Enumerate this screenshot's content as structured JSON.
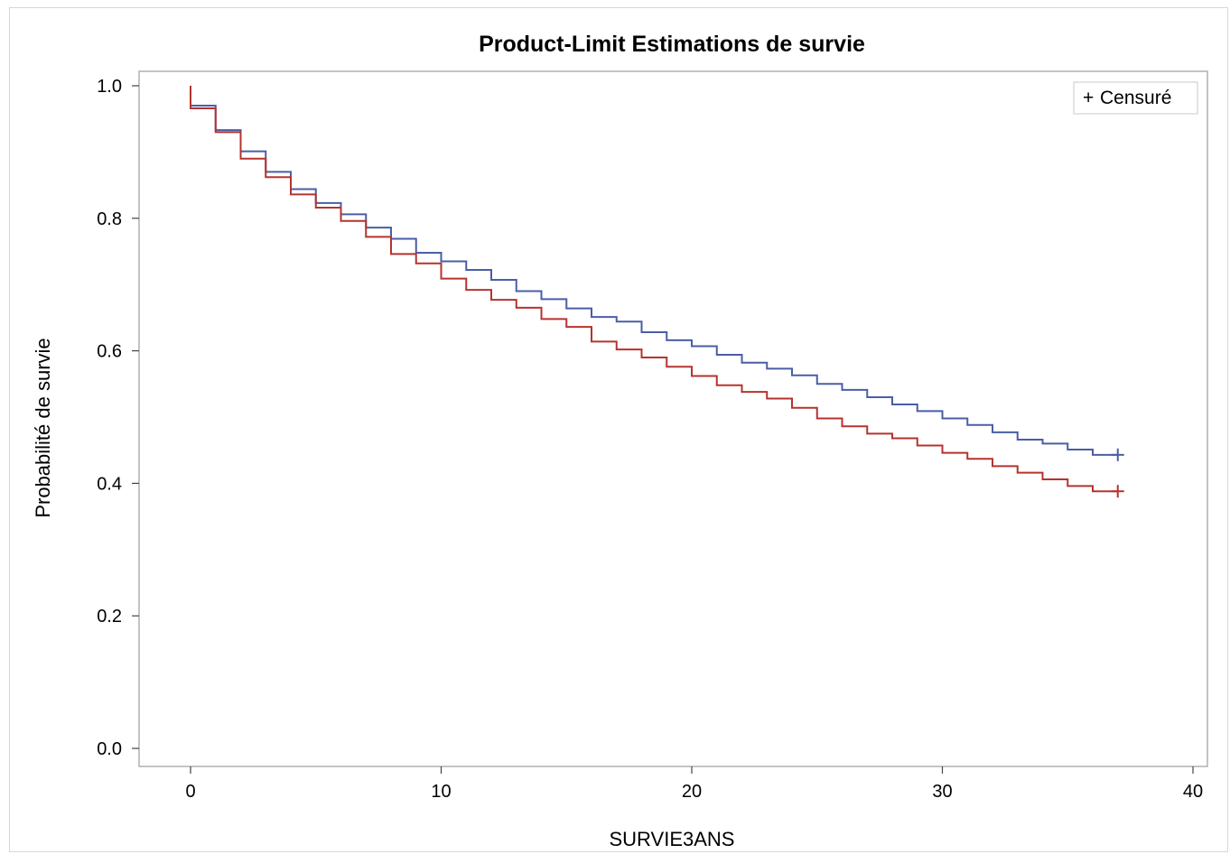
{
  "chart_data": {
    "type": "line",
    "step": true,
    "title": "Product-Limit Estimations de survie",
    "xlabel": "SURVIE3ANS",
    "ylabel": "Probabilité de survie",
    "xlim": [
      0,
      40
    ],
    "ylim": [
      0,
      1
    ],
    "xticks": [
      "0",
      "10",
      "20",
      "30",
      "40"
    ],
    "yticks": [
      "0.0",
      "0.2",
      "0.4",
      "0.6",
      "0.8",
      "1.0"
    ],
    "grid": false,
    "legend": {
      "position": "top-right",
      "entries": [
        {
          "symbol": "+",
          "label": "Censuré"
        }
      ]
    },
    "series": [
      {
        "color": "#4a5ea6",
        "x": [
          0,
          1,
          2,
          3,
          4,
          5,
          6,
          7,
          8,
          9,
          10,
          11,
          12,
          13,
          14,
          15,
          16,
          17,
          18,
          19,
          20,
          21,
          22,
          23,
          24,
          25,
          26,
          27,
          28,
          29,
          30,
          31,
          32,
          33,
          34,
          35,
          36,
          37
        ],
        "y": [
          0.97,
          0.933,
          0.901,
          0.87,
          0.844,
          0.823,
          0.806,
          0.786,
          0.769,
          0.748,
          0.735,
          0.722,
          0.707,
          0.69,
          0.678,
          0.664,
          0.651,
          0.644,
          0.628,
          0.616,
          0.607,
          0.594,
          0.582,
          0.573,
          0.563,
          0.55,
          0.541,
          0.53,
          0.519,
          0.509,
          0.498,
          0.488,
          0.477,
          0.466,
          0.46,
          0.451,
          0.443,
          0.443
        ],
        "censored_at": [
          37
        ]
      },
      {
        "color": "#b5332f",
        "x": [
          0,
          1,
          2,
          3,
          4,
          5,
          6,
          7,
          8,
          9,
          10,
          11,
          12,
          13,
          14,
          15,
          16,
          17,
          18,
          19,
          20,
          21,
          22,
          23,
          24,
          25,
          26,
          27,
          28,
          29,
          30,
          31,
          32,
          33,
          34,
          35,
          36,
          37
        ],
        "y": [
          0.966,
          0.93,
          0.89,
          0.862,
          0.836,
          0.816,
          0.796,
          0.772,
          0.746,
          0.732,
          0.709,
          0.692,
          0.677,
          0.665,
          0.648,
          0.636,
          0.614,
          0.602,
          0.59,
          0.576,
          0.562,
          0.548,
          0.538,
          0.528,
          0.514,
          0.498,
          0.486,
          0.475,
          0.468,
          0.457,
          0.446,
          0.437,
          0.426,
          0.416,
          0.406,
          0.396,
          0.388,
          0.388
        ],
        "censored_at": [
          37
        ]
      }
    ]
  }
}
